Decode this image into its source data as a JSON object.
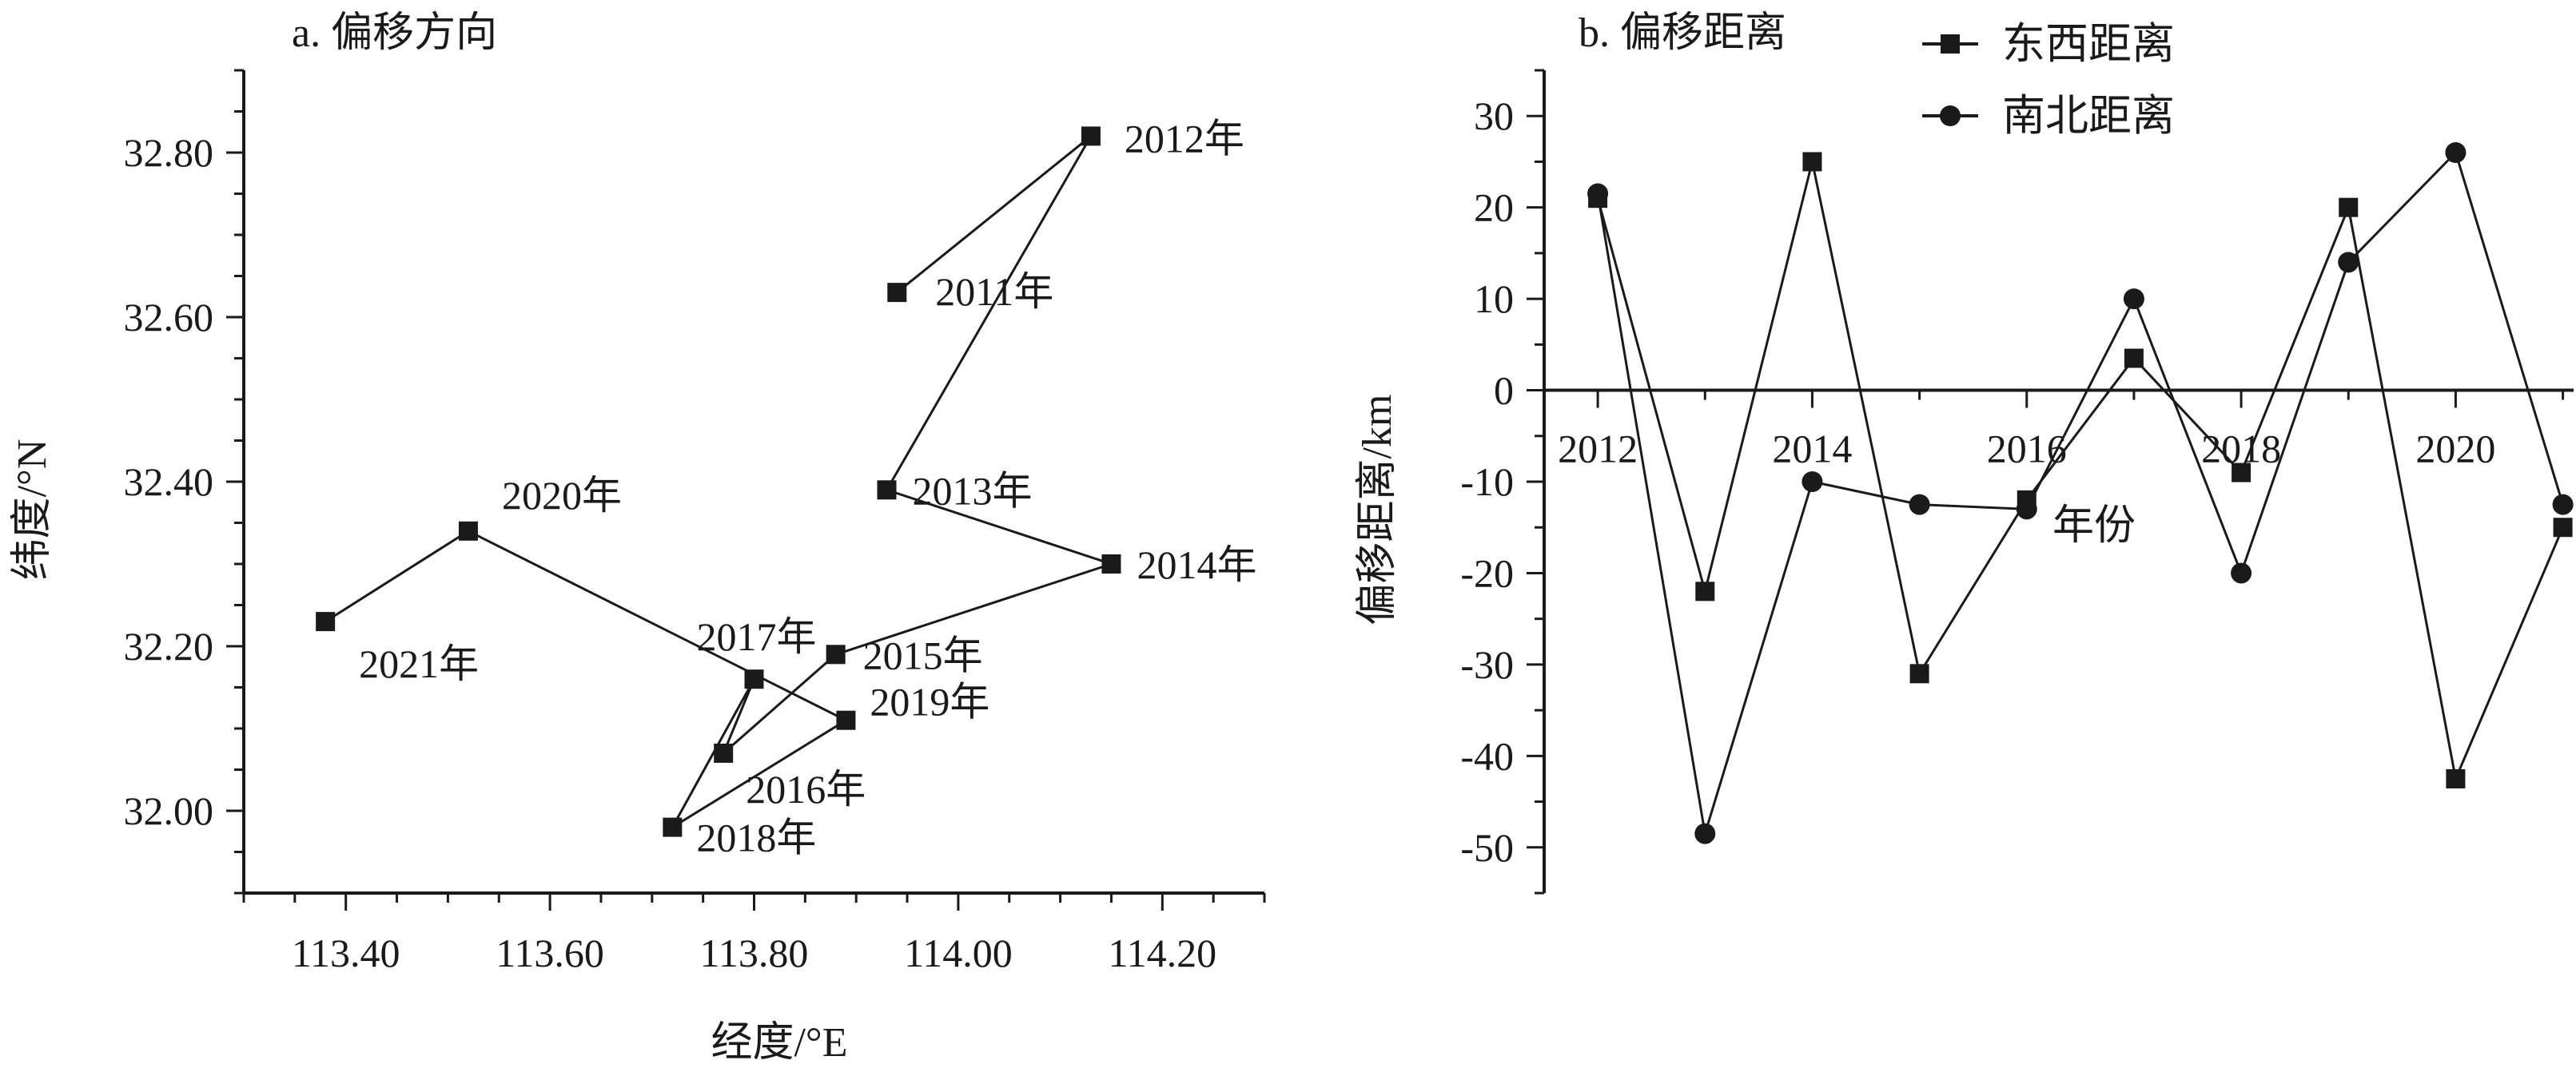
{
  "chart_data": [
    {
      "type": "scatter",
      "title": "a. 偏移方向",
      "xlabel": "经度/°E",
      "ylabel": "纬度/°N",
      "xlim": [
        113.3,
        114.3
      ],
      "ylim": [
        31.9,
        32.9
      ],
      "xticks": [
        113.4,
        113.6,
        113.8,
        114.0,
        114.2
      ],
      "yticks": [
        32.0,
        32.2,
        32.4,
        32.6,
        32.8
      ],
      "xtick_labels": [
        "113.40",
        "113.60",
        "113.80",
        "114.00",
        "114.20"
      ],
      "ytick_labels": [
        "32.00",
        "32.20",
        "32.40",
        "32.60",
        "32.80"
      ],
      "grid": false,
      "connected": true,
      "points": [
        {
          "label": "2011年",
          "x": 113.94,
          "y": 32.63
        },
        {
          "label": "2012年",
          "x": 114.13,
          "y": 32.82
        },
        {
          "label": "2013年",
          "x": 113.93,
          "y": 32.39
        },
        {
          "label": "2014年",
          "x": 114.15,
          "y": 32.3
        },
        {
          "label": "2015年",
          "x": 113.88,
          "y": 32.19
        },
        {
          "label": "2016年",
          "x": 113.77,
          "y": 32.07
        },
        {
          "label": "2017年",
          "x": 113.8,
          "y": 32.16
        },
        {
          "label": "2018年",
          "x": 113.72,
          "y": 31.98
        },
        {
          "label": "2019年",
          "x": 113.89,
          "y": 32.11
        },
        {
          "label": "2020年",
          "x": 113.52,
          "y": 32.34
        },
        {
          "label": "2021年",
          "x": 113.38,
          "y": 32.23
        }
      ]
    },
    {
      "type": "line",
      "title": "b. 偏移距离",
      "xlabel": "年份",
      "ylabel": "偏移距离/km",
      "xlim": [
        2011.5,
        2021.1
      ],
      "ylim": [
        -55,
        35
      ],
      "xticks": [
        2012,
        2014,
        2016,
        2018,
        2020
      ],
      "yticks": [
        -50,
        -40,
        -30,
        -20,
        -10,
        0,
        10,
        20,
        30
      ],
      "xtick_labels": [
        "2012",
        "2014",
        "2016",
        "2018",
        "2020"
      ],
      "ytick_labels": [
        "-50",
        "-40",
        "-30",
        "-20",
        "-10",
        "0",
        "10",
        "20",
        "30"
      ],
      "grid": false,
      "legend_position": "top-right",
      "x": [
        2012,
        2013,
        2014,
        2015,
        2016,
        2017,
        2018,
        2019,
        2020,
        2021
      ],
      "series": [
        {
          "name": "东西距离",
          "marker": "square",
          "values": [
            21,
            -22,
            25,
            -31,
            -12,
            3.5,
            -9,
            20,
            -42.5,
            -15
          ]
        },
        {
          "name": "南北距离",
          "marker": "circle",
          "values": [
            21.5,
            -48.5,
            -10,
            -12.5,
            -13,
            10,
            -20,
            14,
            26,
            -12.5
          ]
        }
      ]
    }
  ]
}
